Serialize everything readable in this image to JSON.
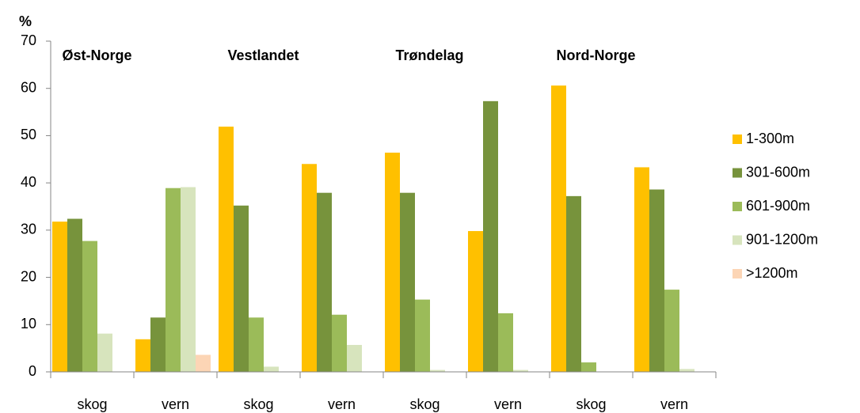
{
  "chart_data": {
    "type": "bar",
    "y_label": "%",
    "annotations": [
      "Øst-Norge",
      "Vestlandet",
      "Trøndelag",
      "Nord-Norge"
    ],
    "categories": [
      "skog",
      "vern",
      "skog",
      "vern",
      "skog",
      "vern",
      "skog",
      "vern"
    ],
    "series": [
      {
        "name": "1-300m",
        "color": "#ffc000",
        "values": [
          31.8,
          6.9,
          51.9,
          44.0,
          46.4,
          29.8,
          60.6,
          43.3
        ]
      },
      {
        "name": "301-600m",
        "color": "#77933c",
        "values": [
          32.4,
          11.5,
          35.2,
          37.9,
          37.9,
          57.3,
          37.2,
          38.6
        ]
      },
      {
        "name": "601-900m",
        "color": "#9bbb59",
        "values": [
          27.7,
          38.9,
          11.5,
          12.1,
          15.3,
          12.4,
          2.0,
          17.4
        ]
      },
      {
        "name": "901-1200m",
        "color": "#d7e4bd",
        "values": [
          8.1,
          39.1,
          1.1,
          5.7,
          0.4,
          0.4,
          0,
          0.6
        ]
      },
      {
        "name": ">1200m",
        "color": "#fcd5b5",
        "values": [
          0,
          3.6,
          0,
          0,
          0,
          0,
          0,
          0
        ]
      }
    ],
    "ylim": [
      0,
      70
    ],
    "yticks": [
      0,
      10,
      20,
      30,
      40,
      50,
      60,
      70
    ],
    "grid": false,
    "legend": "right"
  }
}
